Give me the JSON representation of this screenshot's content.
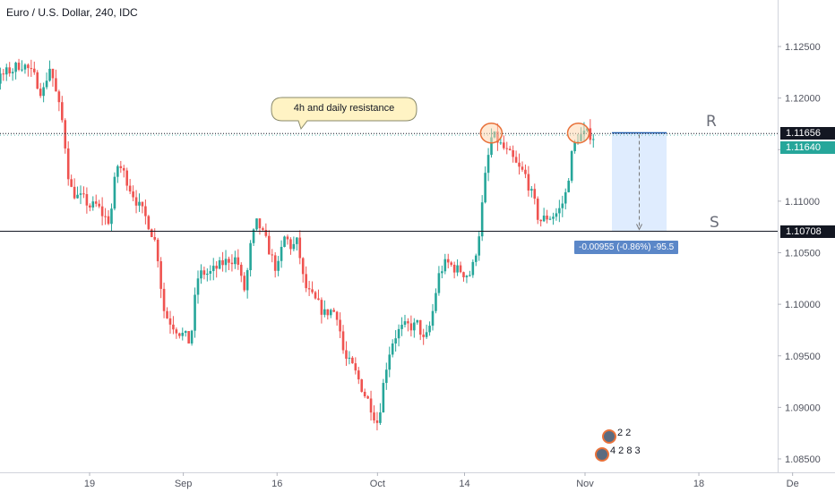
{
  "header": {
    "title": "Euro / U.S. Dollar, 240, IDC"
  },
  "annotations": {
    "callout_text": "4h and daily resistance",
    "resistance_tag": "R",
    "support_tag": "S",
    "measure_text": "-0.00955 (-0.86%) -95.5",
    "ideas_top": "2 2",
    "ideas_bottom": "4 2 8 3"
  },
  "price_tags": {
    "resistance": "1.11656",
    "last": "1.11640",
    "support": "1.10708"
  },
  "colors": {
    "up": "#26a69a",
    "down": "#ef5350",
    "line": "#131722",
    "tag_dark": "#131722",
    "tag_up": "#26a69a",
    "measure_fill": "#dbeafe",
    "measure_label": "#5b87c8",
    "callout_fill": "#fff3c4",
    "highlight_fill": "#ffd7b0",
    "highlight_stroke": "#e8713a"
  },
  "chart_data": {
    "type": "candlestick",
    "title": "Euro / U.S. Dollar, 240, IDC",
    "y_axis": {
      "side": "right",
      "ylim": [
        1.0835,
        1.1285
      ],
      "ticks": [
        "1.12500",
        "1.12000",
        "1.11500",
        "1.11000",
        "1.10500",
        "1.10000",
        "1.09500",
        "1.09000",
        "1.08500"
      ]
    },
    "x_axis": {
      "ticks": [
        "19",
        "Sep",
        "16",
        "Oct",
        "14",
        "Nov",
        "18",
        "De"
      ],
      "tick_dates": [
        "2019-08-19",
        "2019-09-02",
        "2019-09-16",
        "2019-10-01",
        "2019-10-14",
        "2019-11-01",
        "2019-11-18",
        "2019-12-02"
      ]
    },
    "horizontal_levels": [
      {
        "label": "R",
        "value": 1.11656,
        "style": "dotted"
      },
      {
        "label": "S",
        "value": 1.10708,
        "style": "solid"
      }
    ],
    "last_price": 1.1164,
    "measure": {
      "from": 1.11663,
      "to": 1.10708,
      "change": -0.00955,
      "percent": -0.86,
      "pips": -95.5
    },
    "price_path": [
      [
        "2019-08-08",
        1.1175
      ],
      [
        "2019-08-09",
        1.1235
      ],
      [
        "2019-08-12",
        1.1205
      ],
      [
        "2019-08-13",
        1.1235
      ],
      [
        "2019-08-14",
        1.12
      ],
      [
        "2019-08-15",
        1.117
      ],
      [
        "2019-08-16",
        1.111
      ],
      [
        "2019-08-19",
        1.1095
      ],
      [
        "2019-08-20",
        1.1095
      ],
      [
        "2019-08-21",
        1.1085
      ],
      [
        "2019-08-22",
        1.108
      ],
      [
        "2019-08-23",
        1.114
      ],
      [
        "2019-08-26",
        1.11
      ],
      [
        "2019-08-27",
        1.1085
      ],
      [
        "2019-08-28",
        1.1075
      ],
      [
        "2019-08-29",
        1.1055
      ],
      [
        "2019-08-30",
        1.099
      ],
      [
        "2019-09-02",
        1.097
      ],
      [
        "2019-09-03",
        1.096
      ],
      [
        "2019-09-04",
        1.103
      ],
      [
        "2019-09-05",
        1.103
      ],
      [
        "2019-09-06",
        1.103
      ],
      [
        "2019-09-09",
        1.1045
      ],
      [
        "2019-09-10",
        1.1045
      ],
      [
        "2019-09-11",
        1.1005
      ],
      [
        "2019-09-12",
        1.106
      ],
      [
        "2019-09-13",
        1.108
      ],
      [
        "2019-09-16",
        1.103
      ],
      [
        "2019-09-17",
        1.1068
      ],
      [
        "2019-09-18",
        1.1055
      ],
      [
        "2019-09-19",
        1.106
      ],
      [
        "2019-09-20",
        1.1015
      ],
      [
        "2019-09-23",
        1.099
      ],
      [
        "2019-09-24",
        1.0995
      ],
      [
        "2019-09-25",
        1.099
      ],
      [
        "2019-09-26",
        1.0945
      ],
      [
        "2019-09-27",
        1.094
      ],
      [
        "2019-09-30",
        1.09
      ],
      [
        "2019-10-01",
        1.0885
      ],
      [
        "2019-10-02",
        1.0935
      ],
      [
        "2019-10-03",
        1.0965
      ],
      [
        "2019-10-04",
        1.0975
      ],
      [
        "2019-10-07",
        1.098
      ],
      [
        "2019-10-08",
        1.096
      ],
      [
        "2019-10-09",
        1.0985
      ],
      [
        "2019-10-10",
        1.103
      ],
      [
        "2019-10-11",
        1.104
      ],
      [
        "2019-10-14",
        1.103
      ],
      [
        "2019-10-15",
        1.103
      ],
      [
        "2019-10-16",
        1.1065
      ],
      [
        "2019-10-17",
        1.1125
      ],
      [
        "2019-10-18",
        1.1165
      ],
      [
        "2019-10-21",
        1.114
      ],
      [
        "2019-10-22",
        1.113
      ],
      [
        "2019-10-23",
        1.1125
      ],
      [
        "2019-10-24",
        1.1105
      ],
      [
        "2019-10-25",
        1.108
      ],
      [
        "2019-10-28",
        1.109
      ],
      [
        "2019-10-29",
        1.1105
      ],
      [
        "2019-10-30",
        1.115
      ],
      [
        "2019-10-31",
        1.1165
      ],
      [
        "2019-11-01",
        1.1164
      ]
    ],
    "highlighted_tops": [
      "2019-10-18",
      "2019-10-31"
    ]
  }
}
